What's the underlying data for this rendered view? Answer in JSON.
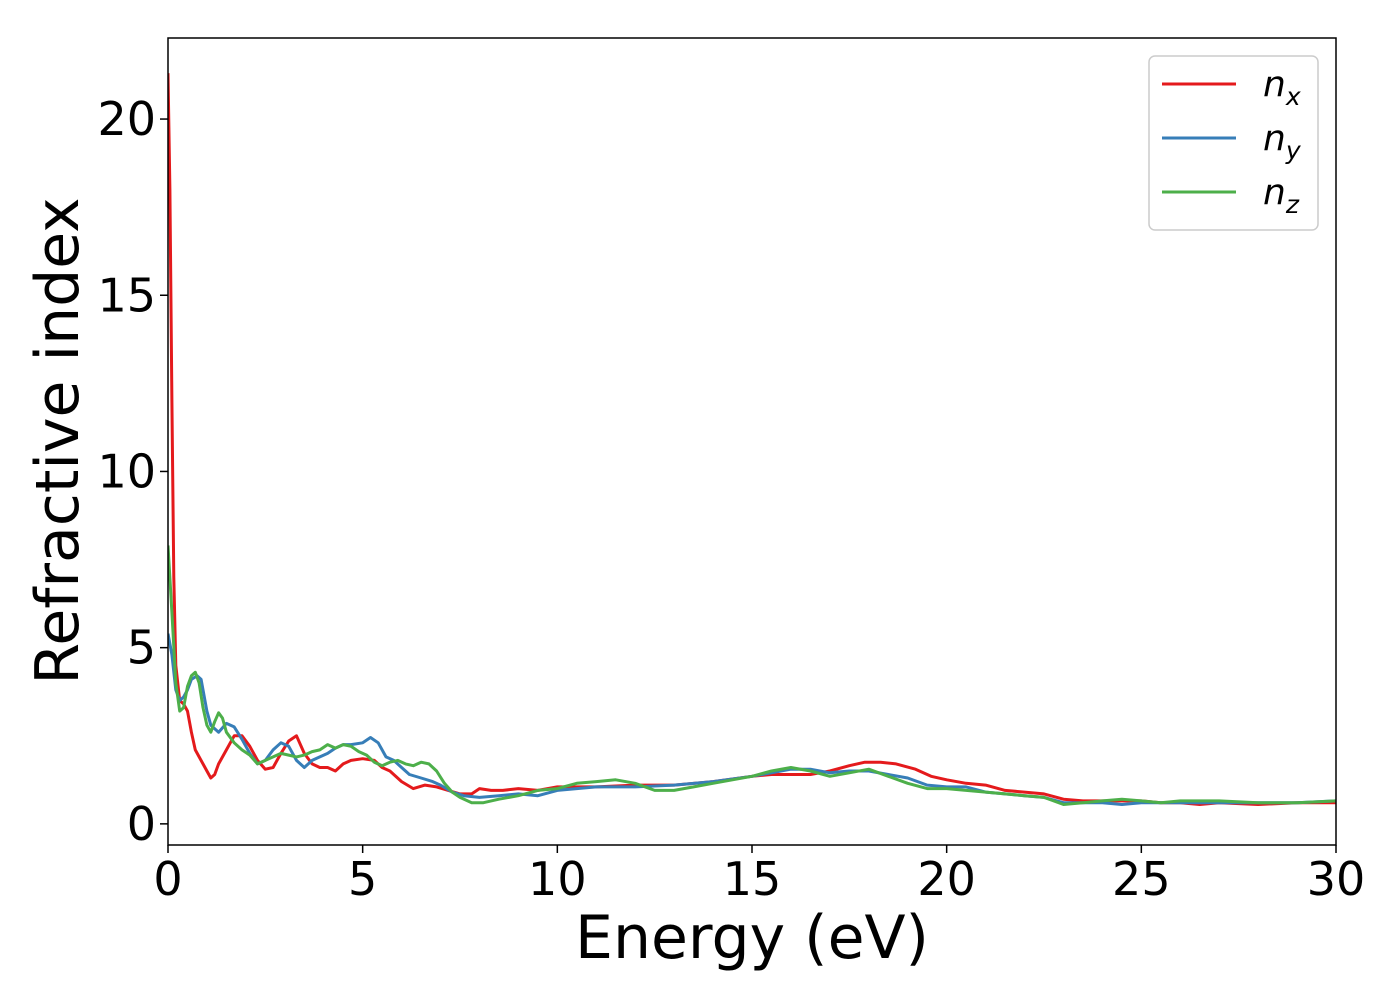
{
  "chart_data": {
    "type": "line",
    "title": "",
    "xlabel": "Energy (eV)",
    "ylabel": "Refractive index",
    "xlim": [
      0,
      30
    ],
    "ylim": [
      -0.6,
      22.3
    ],
    "xticks": [
      0,
      5,
      10,
      15,
      20,
      25,
      30
    ],
    "yticks": [
      0,
      5,
      10,
      15,
      20
    ],
    "grid": false,
    "legend_position": "top-right",
    "series": [
      {
        "name": "n",
        "subscript": "x",
        "color": "#e41a1c",
        "points": [
          [
            0.0,
            21.3
          ],
          [
            0.05,
            18.0
          ],
          [
            0.1,
            12.0
          ],
          [
            0.15,
            7.0
          ],
          [
            0.2,
            4.5
          ],
          [
            0.3,
            3.5
          ],
          [
            0.4,
            3.4
          ],
          [
            0.5,
            3.2
          ],
          [
            0.6,
            2.6
          ],
          [
            0.7,
            2.1
          ],
          [
            0.9,
            1.7
          ],
          [
            1.0,
            1.5
          ],
          [
            1.1,
            1.3
          ],
          [
            1.2,
            1.4
          ],
          [
            1.3,
            1.7
          ],
          [
            1.5,
            2.1
          ],
          [
            1.7,
            2.5
          ],
          [
            1.9,
            2.5
          ],
          [
            2.1,
            2.2
          ],
          [
            2.3,
            1.8
          ],
          [
            2.5,
            1.55
          ],
          [
            2.7,
            1.6
          ],
          [
            2.9,
            2.0
          ],
          [
            3.1,
            2.35
          ],
          [
            3.3,
            2.5
          ],
          [
            3.5,
            2.0
          ],
          [
            3.7,
            1.7
          ],
          [
            3.9,
            1.6
          ],
          [
            4.1,
            1.6
          ],
          [
            4.3,
            1.5
          ],
          [
            4.5,
            1.7
          ],
          [
            4.7,
            1.8
          ],
          [
            5.0,
            1.85
          ],
          [
            5.3,
            1.8
          ],
          [
            5.5,
            1.6
          ],
          [
            5.7,
            1.5
          ],
          [
            6.0,
            1.2
          ],
          [
            6.3,
            1.0
          ],
          [
            6.6,
            1.1
          ],
          [
            6.9,
            1.05
          ],
          [
            7.2,
            0.95
          ],
          [
            7.5,
            0.85
          ],
          [
            7.8,
            0.85
          ],
          [
            8.0,
            1.0
          ],
          [
            8.3,
            0.95
          ],
          [
            8.6,
            0.95
          ],
          [
            9.0,
            1.0
          ],
          [
            9.5,
            0.95
          ],
          [
            10.0,
            1.05
          ],
          [
            11.0,
            1.05
          ],
          [
            12.0,
            1.1
          ],
          [
            13.0,
            1.1
          ],
          [
            14.0,
            1.2
          ],
          [
            15.0,
            1.35
          ],
          [
            15.5,
            1.4
          ],
          [
            16.0,
            1.4
          ],
          [
            16.5,
            1.4
          ],
          [
            17.0,
            1.5
          ],
          [
            17.5,
            1.65
          ],
          [
            17.9,
            1.75
          ],
          [
            18.3,
            1.75
          ],
          [
            18.7,
            1.7
          ],
          [
            19.2,
            1.55
          ],
          [
            19.6,
            1.35
          ],
          [
            20.0,
            1.25
          ],
          [
            20.5,
            1.15
          ],
          [
            21.0,
            1.1
          ],
          [
            21.5,
            0.95
          ],
          [
            22.0,
            0.9
          ],
          [
            22.5,
            0.85
          ],
          [
            23.0,
            0.7
          ],
          [
            23.5,
            0.65
          ],
          [
            24.0,
            0.65
          ],
          [
            24.5,
            0.65
          ],
          [
            25.0,
            0.65
          ],
          [
            25.5,
            0.6
          ],
          [
            26.0,
            0.6
          ],
          [
            26.5,
            0.55
          ],
          [
            27.0,
            0.6
          ],
          [
            28.0,
            0.55
          ],
          [
            29.0,
            0.6
          ],
          [
            30.0,
            0.6
          ]
        ]
      },
      {
        "name": "n",
        "subscript": "y",
        "color": "#377eb8",
        "points": [
          [
            0.0,
            5.4
          ],
          [
            0.1,
            4.8
          ],
          [
            0.2,
            3.8
          ],
          [
            0.3,
            3.5
          ],
          [
            0.4,
            3.6
          ],
          [
            0.5,
            3.8
          ],
          [
            0.6,
            4.1
          ],
          [
            0.75,
            4.2
          ],
          [
            0.85,
            4.1
          ],
          [
            1.0,
            3.2
          ],
          [
            1.1,
            2.8
          ],
          [
            1.2,
            2.7
          ],
          [
            1.3,
            2.6
          ],
          [
            1.5,
            2.85
          ],
          [
            1.7,
            2.75
          ],
          [
            1.9,
            2.4
          ],
          [
            2.1,
            2.0
          ],
          [
            2.3,
            1.7
          ],
          [
            2.5,
            1.8
          ],
          [
            2.7,
            2.1
          ],
          [
            2.9,
            2.3
          ],
          [
            3.1,
            2.2
          ],
          [
            3.3,
            1.8
          ],
          [
            3.5,
            1.6
          ],
          [
            3.7,
            1.8
          ],
          [
            3.9,
            1.9
          ],
          [
            4.1,
            2.0
          ],
          [
            4.3,
            2.15
          ],
          [
            4.5,
            2.25
          ],
          [
            4.7,
            2.25
          ],
          [
            5.0,
            2.3
          ],
          [
            5.2,
            2.45
          ],
          [
            5.4,
            2.3
          ],
          [
            5.6,
            1.9
          ],
          [
            5.8,
            1.8
          ],
          [
            6.0,
            1.6
          ],
          [
            6.2,
            1.4
          ],
          [
            6.5,
            1.3
          ],
          [
            6.8,
            1.2
          ],
          [
            7.0,
            1.1
          ],
          [
            7.3,
            0.9
          ],
          [
            7.6,
            0.8
          ],
          [
            8.0,
            0.75
          ],
          [
            8.5,
            0.8
          ],
          [
            9.0,
            0.85
          ],
          [
            9.5,
            0.8
          ],
          [
            10.0,
            0.95
          ],
          [
            10.5,
            1.0
          ],
          [
            11.0,
            1.05
          ],
          [
            12.0,
            1.05
          ],
          [
            13.0,
            1.1
          ],
          [
            14.0,
            1.2
          ],
          [
            15.0,
            1.35
          ],
          [
            15.5,
            1.45
          ],
          [
            16.0,
            1.55
          ],
          [
            16.5,
            1.55
          ],
          [
            17.0,
            1.45
          ],
          [
            17.5,
            1.5
          ],
          [
            18.0,
            1.5
          ],
          [
            18.5,
            1.4
          ],
          [
            19.0,
            1.3
          ],
          [
            19.5,
            1.1
          ],
          [
            20.0,
            1.05
          ],
          [
            20.5,
            1.05
          ],
          [
            21.0,
            0.9
          ],
          [
            21.5,
            0.85
          ],
          [
            22.0,
            0.8
          ],
          [
            22.5,
            0.75
          ],
          [
            23.0,
            0.6
          ],
          [
            23.5,
            0.6
          ],
          [
            24.0,
            0.6
          ],
          [
            24.5,
            0.55
          ],
          [
            25.0,
            0.6
          ],
          [
            25.5,
            0.6
          ],
          [
            26.0,
            0.6
          ],
          [
            27.0,
            0.6
          ],
          [
            28.0,
            0.6
          ],
          [
            29.0,
            0.6
          ],
          [
            30.0,
            0.65
          ]
        ]
      },
      {
        "name": "n",
        "subscript": "z",
        "color": "#4daf4a",
        "points": [
          [
            0.0,
            7.9
          ],
          [
            0.1,
            6.0
          ],
          [
            0.2,
            4.0
          ],
          [
            0.3,
            3.2
          ],
          [
            0.4,
            3.3
          ],
          [
            0.5,
            3.9
          ],
          [
            0.6,
            4.2
          ],
          [
            0.7,
            4.3
          ],
          [
            0.8,
            4.0
          ],
          [
            0.9,
            3.3
          ],
          [
            1.0,
            2.8
          ],
          [
            1.1,
            2.6
          ],
          [
            1.2,
            2.9
          ],
          [
            1.3,
            3.15
          ],
          [
            1.4,
            3.0
          ],
          [
            1.5,
            2.6
          ],
          [
            1.7,
            2.3
          ],
          [
            1.9,
            2.1
          ],
          [
            2.1,
            1.95
          ],
          [
            2.3,
            1.7
          ],
          [
            2.5,
            1.8
          ],
          [
            2.7,
            1.9
          ],
          [
            2.9,
            2.0
          ],
          [
            3.1,
            1.95
          ],
          [
            3.3,
            1.9
          ],
          [
            3.5,
            1.95
          ],
          [
            3.7,
            2.05
          ],
          [
            3.9,
            2.1
          ],
          [
            4.1,
            2.25
          ],
          [
            4.3,
            2.15
          ],
          [
            4.5,
            2.25
          ],
          [
            4.7,
            2.2
          ],
          [
            4.9,
            2.05
          ],
          [
            5.1,
            1.95
          ],
          [
            5.3,
            1.75
          ],
          [
            5.5,
            1.65
          ],
          [
            5.7,
            1.75
          ],
          [
            5.9,
            1.8
          ],
          [
            6.1,
            1.7
          ],
          [
            6.3,
            1.65
          ],
          [
            6.5,
            1.75
          ],
          [
            6.7,
            1.7
          ],
          [
            6.9,
            1.5
          ],
          [
            7.1,
            1.15
          ],
          [
            7.3,
            0.9
          ],
          [
            7.5,
            0.75
          ],
          [
            7.8,
            0.6
          ],
          [
            8.1,
            0.6
          ],
          [
            8.5,
            0.7
          ],
          [
            9.0,
            0.8
          ],
          [
            9.5,
            0.95
          ],
          [
            10.0,
            1.0
          ],
          [
            10.5,
            1.15
          ],
          [
            11.0,
            1.2
          ],
          [
            11.5,
            1.25
          ],
          [
            12.0,
            1.15
          ],
          [
            12.5,
            0.95
          ],
          [
            13.0,
            0.95
          ],
          [
            13.5,
            1.05
          ],
          [
            14.0,
            1.15
          ],
          [
            14.5,
            1.25
          ],
          [
            15.0,
            1.35
          ],
          [
            15.5,
            1.5
          ],
          [
            16.0,
            1.6
          ],
          [
            16.5,
            1.5
          ],
          [
            17.0,
            1.35
          ],
          [
            17.5,
            1.45
          ],
          [
            18.0,
            1.55
          ],
          [
            18.5,
            1.35
          ],
          [
            19.0,
            1.15
          ],
          [
            19.5,
            1.0
          ],
          [
            20.0,
            1.0
          ],
          [
            20.5,
            0.95
          ],
          [
            21.0,
            0.9
          ],
          [
            21.5,
            0.85
          ],
          [
            22.0,
            0.8
          ],
          [
            22.5,
            0.75
          ],
          [
            23.0,
            0.55
          ],
          [
            23.5,
            0.6
          ],
          [
            24.0,
            0.65
          ],
          [
            24.5,
            0.7
          ],
          [
            25.0,
            0.65
          ],
          [
            25.5,
            0.6
          ],
          [
            26.0,
            0.65
          ],
          [
            27.0,
            0.65
          ],
          [
            28.0,
            0.6
          ],
          [
            29.0,
            0.6
          ],
          [
            30.0,
            0.65
          ]
        ]
      }
    ]
  }
}
